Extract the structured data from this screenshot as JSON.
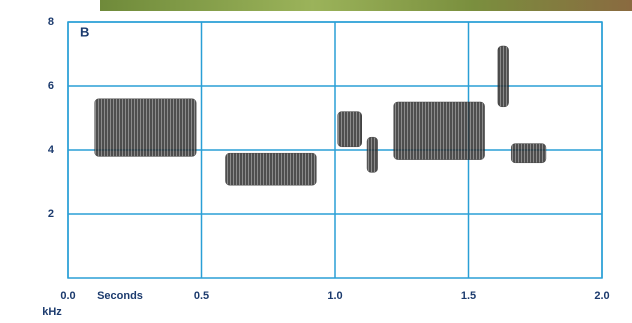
{
  "chart_data": {
    "type": "spectrogram",
    "panel_label": "B",
    "x_label": "Seconds",
    "y_label": "kHz",
    "xlim": [
      0,
      2
    ],
    "ylim": [
      0,
      8
    ],
    "xticks": [
      {
        "value": 0,
        "label": "0.0"
      },
      0.5,
      {
        "value": 1,
        "label": "1.0"
      },
      1.5,
      {
        "value": 2,
        "label": "2.0"
      }
    ],
    "yticks": [
      2,
      4,
      6,
      8
    ],
    "grid": true,
    "grid_color": "#2a9fd6",
    "color": "#222222",
    "notes": [
      {
        "start": 0.1,
        "end": 0.48,
        "low": 3.8,
        "high": 5.6
      },
      {
        "start": 0.59,
        "end": 0.93,
        "low": 2.9,
        "high": 3.9
      },
      {
        "start": 1.01,
        "end": 1.1,
        "low": 4.1,
        "high": 5.2
      },
      {
        "start": 1.12,
        "end": 1.16,
        "low": 3.3,
        "high": 4.4
      },
      {
        "start": 1.22,
        "end": 1.56,
        "low": 3.7,
        "high": 5.5
      },
      {
        "start": 1.61,
        "end": 1.65,
        "low": 5.35,
        "high": 7.25
      },
      {
        "start": 1.66,
        "end": 1.79,
        "low": 3.6,
        "high": 4.2
      }
    ]
  }
}
